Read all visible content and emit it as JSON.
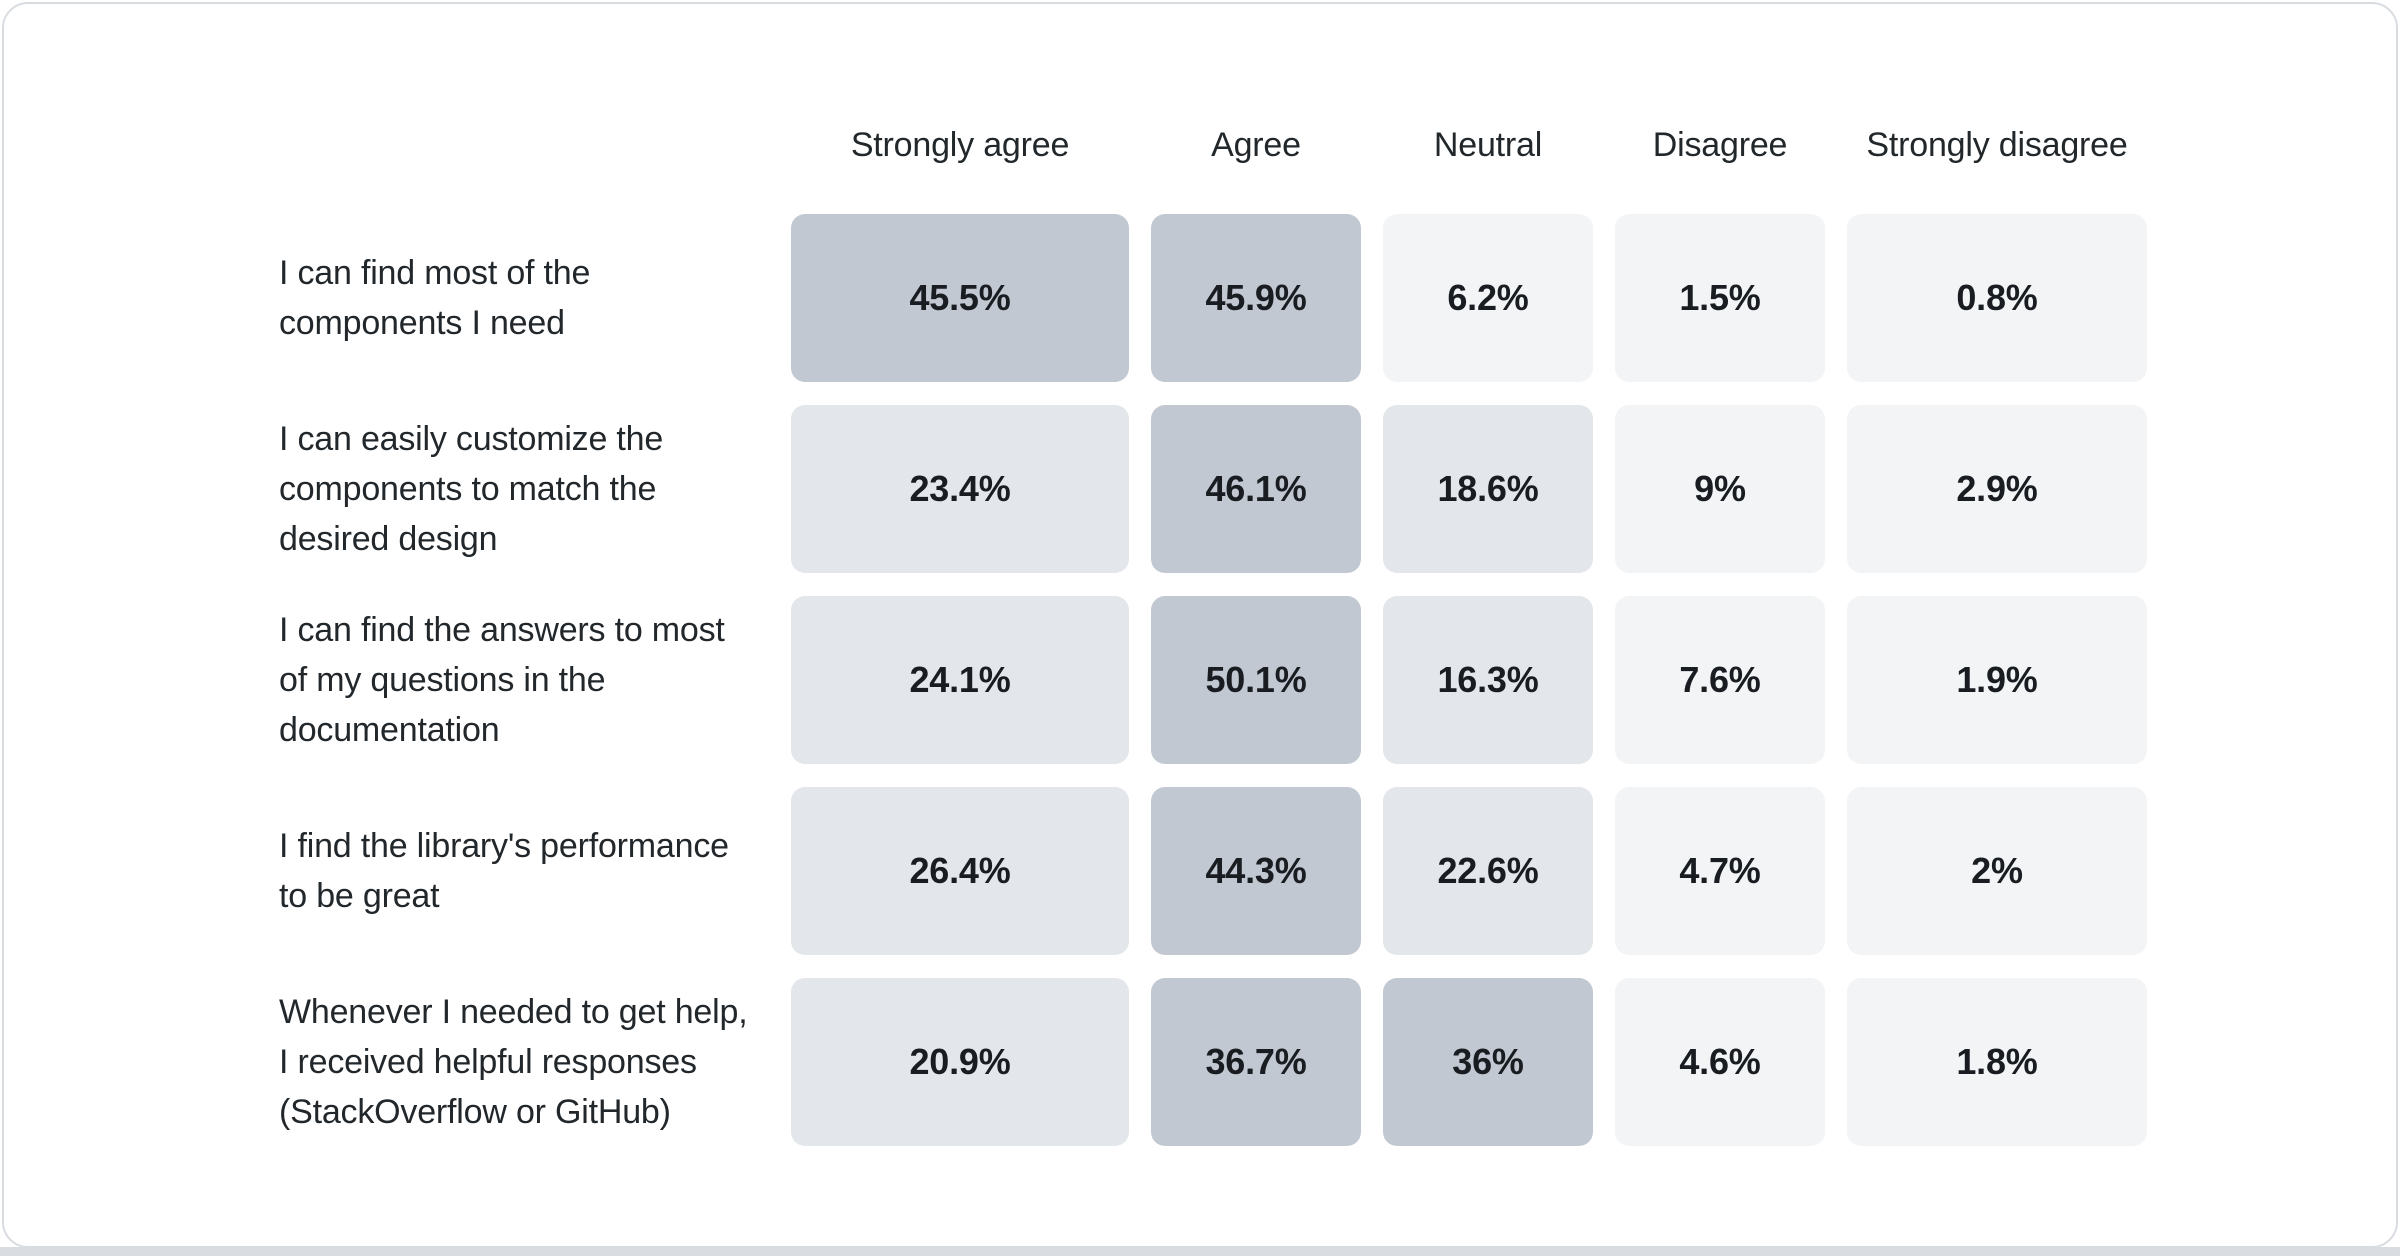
{
  "chart_data": {
    "type": "heatmap",
    "title": "",
    "xlabel": "",
    "ylabel": "",
    "legend": "none",
    "grid": "off",
    "value_unit": "%",
    "columns": [
      "Strongly agree",
      "Agree",
      "Neutral",
      "Disagree",
      "Strongly disagree"
    ],
    "rows": [
      {
        "label": "I can find most of the\ncomponents I need",
        "values": [
          45.5,
          45.9,
          6.2,
          1.5,
          0.8
        ],
        "display": [
          "45.5%",
          "45.9%",
          "6.2%",
          "1.5%",
          "0.8%"
        ]
      },
      {
        "label": "I can easily customize the\ncomponents to match the\ndesired design",
        "values": [
          23.4,
          46.1,
          18.6,
          9,
          2.9
        ],
        "display": [
          "23.4%",
          "46.1%",
          "18.6%",
          "9%",
          "2.9%"
        ]
      },
      {
        "label": "I can find the answers to most\nof my questions in the\ndocumentation",
        "values": [
          24.1,
          50.1,
          16.3,
          7.6,
          1.9
        ],
        "display": [
          "24.1%",
          "50.1%",
          "16.3%",
          "7.6%",
          "1.9%"
        ]
      },
      {
        "label": "I find the library's performance\nto be great",
        "values": [
          26.4,
          44.3,
          22.6,
          4.7,
          2
        ],
        "display": [
          "26.4%",
          "44.3%",
          "22.6%",
          "4.7%",
          "2%"
        ]
      },
      {
        "label": "Whenever I needed to get help,\nI received helpful responses\n(StackOverflow or GitHub)",
        "values": [
          20.9,
          36.7,
          36,
          4.6,
          1.8
        ],
        "display": [
          "20.9%",
          "36.7%",
          "36%",
          "4.6%",
          "1.8%"
        ]
      }
    ],
    "heat_scale": [
      {
        "min": 30,
        "color": "#c2c8d1"
      },
      {
        "min": 12,
        "color": "#e3e6ea"
      },
      {
        "min": 0,
        "color": "#f2f4f6"
      }
    ]
  },
  "theme": {
    "card_background": "#ffffff",
    "card_border": "#d8dce1",
    "bottom_strip": "#d9dde1",
    "header_text_color": "#21272a",
    "label_text_color": "#22272b",
    "value_text_color": "#191d22"
  }
}
